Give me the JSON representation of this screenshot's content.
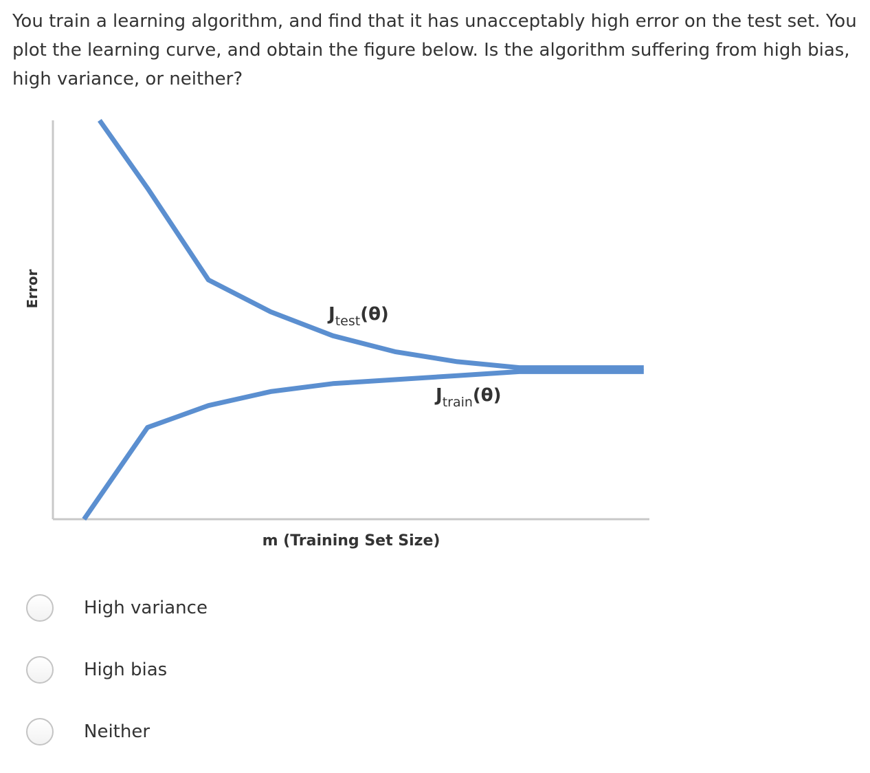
{
  "question": {
    "text": "You train a learning algorithm, and find that it has unacceptably high error on the test set. You plot the learning curve, and obtain the figure below. Is the algorithm suffering from high bias, high variance, or neither?"
  },
  "colors": {
    "curve": "#5b8fd0",
    "axis": "#c8c8c8",
    "text": "#333333"
  },
  "chart_data": {
    "type": "line",
    "xlabel": "m (Training Set Size)",
    "ylabel": "Error",
    "xlim": [
      0,
      10
    ],
    "ylim": [
      0,
      10
    ],
    "grid": false,
    "series": [
      {
        "name": "Jtest(θ)",
        "label_main": "J",
        "label_sub": "test",
        "label_arg": "(θ)",
        "x": [
          0.75,
          1.52,
          2.5,
          3.5,
          4.5,
          5.5,
          6.5,
          7.5,
          9.5
        ],
        "y": [
          10.0,
          8.3,
          6.0,
          5.2,
          4.6,
          4.2,
          3.95,
          3.8,
          3.8
        ]
      },
      {
        "name": "Jtrain(θ)",
        "label_main": "J",
        "label_sub": "train",
        "label_arg": "(θ)",
        "x": [
          0.5,
          1.52,
          2.5,
          3.5,
          4.5,
          5.5,
          6.5,
          7.5,
          9.5
        ],
        "y": [
          0.0,
          2.3,
          2.85,
          3.2,
          3.4,
          3.5,
          3.6,
          3.7,
          3.7
        ]
      }
    ]
  },
  "options": [
    {
      "label": "High variance"
    },
    {
      "label": "High bias"
    },
    {
      "label": "Neither"
    }
  ]
}
